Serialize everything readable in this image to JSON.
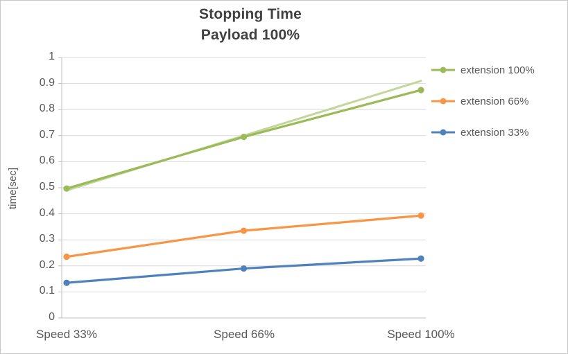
{
  "chart_data": {
    "type": "line",
    "title": "Stopping Time",
    "subtitle": "Payload 100%",
    "ylabel": "time[sec]",
    "xlabel": "",
    "categories": [
      "Speed 33%",
      "Speed 66%",
      "Speed 100%"
    ],
    "ylim": [
      0,
      1
    ],
    "yticks": [
      0,
      0.1,
      0.2,
      0.3,
      0.4,
      0.5,
      0.6,
      0.7,
      0.8,
      0.9,
      1
    ],
    "ytick_labels": [
      "0",
      "0.1",
      "0.2",
      "0.3",
      "0.4",
      "0.5",
      "0.6",
      "0.7",
      "0.8",
      "0.9",
      "1"
    ],
    "grid": true,
    "legend_position": "right",
    "series": [
      {
        "name": "extension 100%",
        "color": "#9BBB59",
        "values": [
          0.497,
          0.695,
          0.875
        ]
      },
      {
        "name": "extension 66%",
        "color": "#F79646",
        "values": [
          0.235,
          0.335,
          0.393
        ]
      },
      {
        "name": "extension 33%",
        "color": "#4F81BD",
        "values": [
          0.135,
          0.19,
          0.228
        ]
      }
    ],
    "trendline": {
      "for_series": "extension 100%",
      "color": "#C3D69B",
      "values": [
        0.49,
        0.7,
        0.91
      ]
    }
  },
  "colors": {
    "grid": "#D9D9D9",
    "axis": "#BFBFBF",
    "tick_text": "#595959",
    "title_text": "#404040",
    "border": "#C9C9C9"
  }
}
